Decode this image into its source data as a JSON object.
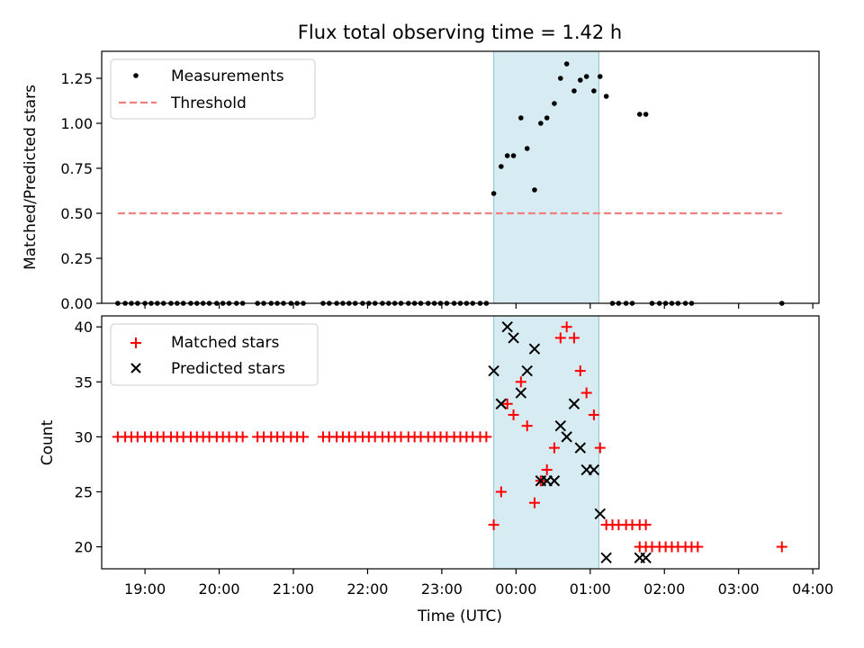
{
  "figure": {
    "title": "Flux total observing time = 1.42 h"
  },
  "chart_data": [
    {
      "type": "scatter",
      "ylabel": "Matched/Predicted stars",
      "ylim": [
        0,
        1.4
      ],
      "yticks": [
        0,
        0.25,
        0.5,
        0.75,
        1.0,
        1.25
      ],
      "ytick_labels": [
        "0.00",
        "0.25",
        "0.50",
        "0.75",
        "1.00",
        "1.25"
      ],
      "xlim": [
        "18:25",
        "04:05"
      ],
      "xticks": [
        "19:00",
        "20:00",
        "21:00",
        "22:00",
        "23:00",
        "00:00",
        "01:00",
        "02:00",
        "03:00",
        "04:00"
      ],
      "shaded_span": [
        "23:42",
        "01:07"
      ],
      "legend": "top-left",
      "series": [
        {
          "name": "Measurements",
          "marker": "dot",
          "color": "#000000",
          "points": [
            [
              "18:38",
              0
            ],
            [
              "18:44",
              0
            ],
            [
              "18:49",
              0
            ],
            [
              "18:54",
              0
            ],
            [
              "19:00",
              0
            ],
            [
              "19:05",
              0
            ],
            [
              "19:10",
              0
            ],
            [
              "19:15",
              0
            ],
            [
              "19:21",
              0
            ],
            [
              "19:26",
              0
            ],
            [
              "19:31",
              0
            ],
            [
              "19:37",
              0
            ],
            [
              "19:42",
              0
            ],
            [
              "19:47",
              0
            ],
            [
              "19:52",
              0
            ],
            [
              "19:58",
              0
            ],
            [
              "20:03",
              0
            ],
            [
              "20:08",
              0
            ],
            [
              "20:14",
              0
            ],
            [
              "20:19",
              0
            ],
            [
              "20:31",
              0
            ],
            [
              "20:36",
              0
            ],
            [
              "20:42",
              0
            ],
            [
              "20:47",
              0
            ],
            [
              "20:52",
              0
            ],
            [
              "20:58",
              0
            ],
            [
              "21:03",
              0
            ],
            [
              "21:08",
              0
            ],
            [
              "21:24",
              0
            ],
            [
              "21:29",
              0
            ],
            [
              "21:35",
              0
            ],
            [
              "21:40",
              0
            ],
            [
              "21:45",
              0
            ],
            [
              "21:50",
              0
            ],
            [
              "21:56",
              0
            ],
            [
              "22:01",
              0
            ],
            [
              "22:06",
              0
            ],
            [
              "22:12",
              0
            ],
            [
              "22:17",
              0
            ],
            [
              "22:22",
              0
            ],
            [
              "22:27",
              0
            ],
            [
              "22:33",
              0
            ],
            [
              "22:38",
              0
            ],
            [
              "22:43",
              0
            ],
            [
              "22:49",
              0
            ],
            [
              "22:54",
              0
            ],
            [
              "22:59",
              0
            ],
            [
              "23:04",
              0
            ],
            [
              "23:10",
              0
            ],
            [
              "23:15",
              0
            ],
            [
              "23:20",
              0
            ],
            [
              "23:25",
              0
            ],
            [
              "23:31",
              0
            ],
            [
              "23:36",
              0
            ],
            [
              "23:42",
              0.61
            ],
            [
              "23:48",
              0.76
            ],
            [
              "23:53",
              0.82
            ],
            [
              "23:58",
              0.82
            ],
            [
              "00:04",
              1.03
            ],
            [
              "00:09",
              0.86
            ],
            [
              "00:15",
              0.63
            ],
            [
              "00:20",
              1.0
            ],
            [
              "00:25",
              1.03
            ],
            [
              "00:31",
              1.11
            ],
            [
              "00:36",
              1.25
            ],
            [
              "00:41",
              1.33
            ],
            [
              "00:47",
              1.18
            ],
            [
              "00:52",
              1.24
            ],
            [
              "00:57",
              1.26
            ],
            [
              "01:03",
              1.18
            ],
            [
              "01:08",
              1.26
            ],
            [
              "01:13",
              1.15
            ],
            [
              "01:18",
              0
            ],
            [
              "01:23",
              0
            ],
            [
              "01:29",
              0
            ],
            [
              "01:34",
              0
            ],
            [
              "01:40",
              1.05
            ],
            [
              "01:45",
              1.05
            ],
            [
              "01:50",
              0
            ],
            [
              "01:56",
              0
            ],
            [
              "02:01",
              0
            ],
            [
              "02:06",
              0
            ],
            [
              "02:11",
              0
            ],
            [
              "02:17",
              0
            ],
            [
              "02:22",
              0
            ],
            [
              "03:35",
              0
            ]
          ]
        },
        {
          "name": "Threshold",
          "marker": "dashed-line",
          "color": "#f08080",
          "points": [
            [
              "18:38",
              0.5
            ],
            [
              "03:35",
              0.5
            ]
          ]
        }
      ]
    },
    {
      "type": "scatter",
      "xlabel": "Time (UTC)",
      "ylabel": "Count",
      "ylim": [
        18,
        41
      ],
      "yticks": [
        20,
        25,
        30,
        35,
        40
      ],
      "ytick_labels": [
        "20",
        "25",
        "30",
        "35",
        "40"
      ],
      "xlim": [
        "18:25",
        "04:05"
      ],
      "xticks": [
        "19:00",
        "20:00",
        "21:00",
        "22:00",
        "23:00",
        "00:00",
        "01:00",
        "02:00",
        "03:00",
        "04:00"
      ],
      "shaded_span": [
        "23:42",
        "01:07"
      ],
      "legend": "top-left",
      "series": [
        {
          "name": "Matched stars",
          "marker": "plus",
          "color": "#ff0000",
          "points": [
            [
              "18:38",
              30
            ],
            [
              "18:44",
              30
            ],
            [
              "18:49",
              30
            ],
            [
              "18:54",
              30
            ],
            [
              "19:00",
              30
            ],
            [
              "19:05",
              30
            ],
            [
              "19:10",
              30
            ],
            [
              "19:15",
              30
            ],
            [
              "19:21",
              30
            ],
            [
              "19:26",
              30
            ],
            [
              "19:31",
              30
            ],
            [
              "19:37",
              30
            ],
            [
              "19:42",
              30
            ],
            [
              "19:47",
              30
            ],
            [
              "19:52",
              30
            ],
            [
              "19:58",
              30
            ],
            [
              "20:03",
              30
            ],
            [
              "20:08",
              30
            ],
            [
              "20:14",
              30
            ],
            [
              "20:19",
              30
            ],
            [
              "20:31",
              30
            ],
            [
              "20:36",
              30
            ],
            [
              "20:42",
              30
            ],
            [
              "20:47",
              30
            ],
            [
              "20:52",
              30
            ],
            [
              "20:58",
              30
            ],
            [
              "21:03",
              30
            ],
            [
              "21:08",
              30
            ],
            [
              "21:24",
              30
            ],
            [
              "21:29",
              30
            ],
            [
              "21:35",
              30
            ],
            [
              "21:40",
              30
            ],
            [
              "21:45",
              30
            ],
            [
              "21:50",
              30
            ],
            [
              "21:56",
              30
            ],
            [
              "22:01",
              30
            ],
            [
              "22:06",
              30
            ],
            [
              "22:12",
              30
            ],
            [
              "22:17",
              30
            ],
            [
              "22:22",
              30
            ],
            [
              "22:27",
              30
            ],
            [
              "22:33",
              30
            ],
            [
              "22:38",
              30
            ],
            [
              "22:43",
              30
            ],
            [
              "22:49",
              30
            ],
            [
              "22:54",
              30
            ],
            [
              "22:59",
              30
            ],
            [
              "23:04",
              30
            ],
            [
              "23:10",
              30
            ],
            [
              "23:15",
              30
            ],
            [
              "23:20",
              30
            ],
            [
              "23:25",
              30
            ],
            [
              "23:31",
              30
            ],
            [
              "23:36",
              30
            ],
            [
              "23:42",
              22
            ],
            [
              "23:48",
              25
            ],
            [
              "23:53",
              33
            ],
            [
              "23:58",
              32
            ],
            [
              "00:04",
              35
            ],
            [
              "00:09",
              31
            ],
            [
              "00:15",
              24
            ],
            [
              "00:20",
              26
            ],
            [
              "00:25",
              27
            ],
            [
              "00:31",
              29
            ],
            [
              "00:36",
              39
            ],
            [
              "00:41",
              40
            ],
            [
              "00:47",
              39
            ],
            [
              "00:52",
              36
            ],
            [
              "00:57",
              34
            ],
            [
              "01:03",
              32
            ],
            [
              "01:08",
              29
            ],
            [
              "01:13",
              22
            ],
            [
              "01:18",
              22
            ],
            [
              "01:23",
              22
            ],
            [
              "01:29",
              22
            ],
            [
              "01:34",
              22
            ],
            [
              "01:40",
              22
            ],
            [
              "01:45",
              22
            ],
            [
              "01:40",
              20
            ],
            [
              "01:45",
              20
            ],
            [
              "01:50",
              20
            ],
            [
              "01:56",
              20
            ],
            [
              "02:01",
              20
            ],
            [
              "02:06",
              20
            ],
            [
              "02:11",
              20
            ],
            [
              "02:17",
              20
            ],
            [
              "02:22",
              20
            ],
            [
              "02:27",
              20
            ],
            [
              "03:35",
              20
            ]
          ]
        },
        {
          "name": "Predicted stars",
          "marker": "x",
          "color": "#000000",
          "points": [
            [
              "23:42",
              36
            ],
            [
              "23:48",
              33
            ],
            [
              "23:53",
              40
            ],
            [
              "23:58",
              39
            ],
            [
              "00:04",
              34
            ],
            [
              "00:09",
              36
            ],
            [
              "00:15",
              38
            ],
            [
              "00:20",
              26
            ],
            [
              "00:25",
              26
            ],
            [
              "00:31",
              26
            ],
            [
              "00:36",
              31
            ],
            [
              "00:41",
              30
            ],
            [
              "00:47",
              33
            ],
            [
              "00:52",
              29
            ],
            [
              "00:57",
              27
            ],
            [
              "01:03",
              27
            ],
            [
              "01:08",
              23
            ],
            [
              "01:13",
              19
            ],
            [
              "01:40",
              19
            ],
            [
              "01:45",
              19
            ]
          ]
        }
      ]
    }
  ]
}
